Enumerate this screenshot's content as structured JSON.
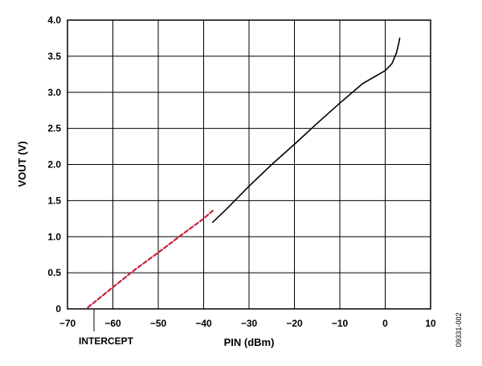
{
  "chart_data": {
    "type": "line",
    "xlabel": "PIN (dBm)",
    "ylabel": "VOUT (V)",
    "xlim": [
      -70,
      10
    ],
    "ylim": [
      0,
      4.0
    ],
    "x_ticks": [
      -70,
      -60,
      -50,
      -40,
      -30,
      -20,
      -10,
      0,
      10
    ],
    "x_tick_labels": [
      "−70",
      "−60",
      "−50",
      "−40",
      "−30",
      "−20",
      "−10",
      "0",
      "10"
    ],
    "y_ticks": [
      0,
      0.5,
      1.0,
      1.5,
      2.0,
      2.5,
      3.0,
      3.5,
      4.0
    ],
    "y_tick_labels": [
      "0",
      "0.5",
      "1.0",
      "1.5",
      "2.0",
      "2.5",
      "3.0",
      "3.5",
      "4.0"
    ],
    "grid": true,
    "series": [
      {
        "color": "#000000",
        "style": "solid",
        "x": [
          -38,
          -35,
          -30,
          -25,
          -20,
          -15,
          -10,
          -5,
          0,
          1.5,
          2.5,
          3.0,
          3.2
        ],
        "y": [
          1.2,
          1.38,
          1.7,
          2.0,
          2.28,
          2.57,
          2.85,
          3.12,
          3.3,
          3.4,
          3.55,
          3.68,
          3.75
        ]
      },
      {
        "color": "#cc1f3b",
        "style": "dashed",
        "x": [
          -65.5,
          -60,
          -55,
          -50,
          -45,
          -40,
          -38
        ],
        "y": [
          0.02,
          0.3,
          0.55,
          0.78,
          1.02,
          1.25,
          1.36
        ]
      }
    ],
    "annotations": [
      {
        "text": "INTERCEPT",
        "x": -65.5,
        "y": 0
      }
    ]
  },
  "figure_id": "09331-002"
}
